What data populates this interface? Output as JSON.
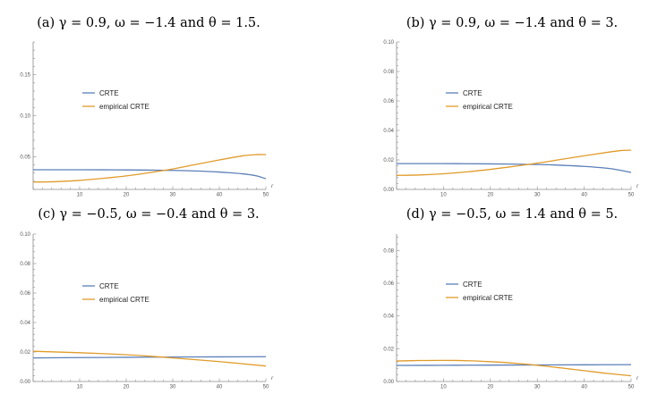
{
  "chart_data": [
    {
      "type": "line",
      "title": "(a) γ = 0.9, ω = −1.4 and θ = 1.5.",
      "xlabel": "r",
      "ylabel": "",
      "xlim": [
        0,
        50
      ],
      "ylim": [
        0.01,
        0.19
      ],
      "x_ticks": [
        10,
        20,
        30,
        40,
        50
      ],
      "y_ticks": [
        0.05,
        0.1,
        0.15
      ],
      "y_tick_labels": [
        "0.05",
        "0.10",
        "0.15"
      ],
      "series": [
        {
          "name": "CRTE",
          "color": "#5b7fb8",
          "x": [
            0,
            10,
            20,
            30,
            35,
            40,
            45,
            48,
            50
          ],
          "y": [
            0.034,
            0.034,
            0.0338,
            0.0332,
            0.0325,
            0.0312,
            0.029,
            0.0265,
            0.023
          ]
        },
        {
          "name": "empirical CRTE",
          "color": "#e09b2a",
          "x": [
            0,
            5,
            10,
            15,
            20,
            25,
            30,
            35,
            40,
            45,
            48,
            50
          ],
          "y": [
            0.019,
            0.0195,
            0.021,
            0.0235,
            0.0265,
            0.0305,
            0.035,
            0.0405,
            0.046,
            0.051,
            0.0525,
            0.0525
          ]
        }
      ],
      "legend": "left",
      "grid": false
    },
    {
      "type": "line",
      "title": "(b) γ = 0.9, ω = −1.4 and θ = 3.",
      "xlabel": "r",
      "ylabel": "",
      "xlim": [
        0,
        50
      ],
      "ylim": [
        0,
        0.1
      ],
      "x_ticks": [
        10,
        20,
        30,
        40,
        50
      ],
      "y_ticks": [
        0,
        0.02,
        0.04,
        0.06,
        0.08,
        0.1
      ],
      "y_tick_labels": [
        "0.00",
        "0.02",
        "0.04",
        "0.06",
        "0.08",
        "0.10"
      ],
      "series": [
        {
          "name": "CRTE",
          "color": "#5b7fb8",
          "x": [
            0,
            10,
            20,
            30,
            35,
            40,
            45,
            48,
            50
          ],
          "y": [
            0.0175,
            0.0175,
            0.0173,
            0.0169,
            0.0164,
            0.0156,
            0.0143,
            0.0128,
            0.0115
          ]
        },
        {
          "name": "empirical CRTE",
          "color": "#e09b2a",
          "x": [
            0,
            5,
            10,
            15,
            20,
            25,
            30,
            35,
            40,
            45,
            48,
            50
          ],
          "y": [
            0.0095,
            0.0098,
            0.0106,
            0.0119,
            0.0136,
            0.0156,
            0.0178,
            0.0203,
            0.0228,
            0.0252,
            0.0264,
            0.0266
          ]
        }
      ],
      "legend": "left",
      "grid": false
    },
    {
      "type": "line",
      "title": "(c) γ = −0.5, ω = −0.4 and θ = 3.",
      "xlabel": "r",
      "ylabel": "",
      "xlim": [
        0,
        50
      ],
      "ylim": [
        0,
        0.1
      ],
      "x_ticks": [
        10,
        20,
        30,
        40,
        50
      ],
      "y_ticks": [
        0,
        0.02,
        0.04,
        0.06,
        0.08,
        0.1
      ],
      "y_tick_labels": [
        "0.00",
        "0.02",
        "0.04",
        "0.06",
        "0.08",
        "0.10"
      ],
      "series": [
        {
          "name": "CRTE",
          "color": "#5b7fb8",
          "x": [
            0,
            10,
            20,
            30,
            40,
            50
          ],
          "y": [
            0.016,
            0.0162,
            0.0164,
            0.0166,
            0.0167,
            0.0168
          ]
        },
        {
          "name": "empirical CRTE",
          "color": "#e09b2a",
          "x": [
            0,
            10,
            20,
            25,
            30,
            40,
            50
          ],
          "y": [
            0.0205,
            0.0195,
            0.0182,
            0.0172,
            0.016,
            0.0135,
            0.0105
          ]
        }
      ],
      "legend": "left",
      "grid": false
    },
    {
      "type": "line",
      "title": "(d) γ = −0.5, ω = 1.4 and θ = 5.",
      "xlabel": "r",
      "ylabel": "",
      "xlim": [
        0,
        50
      ],
      "ylim": [
        0,
        0.09
      ],
      "x_ticks": [
        10,
        20,
        30,
        40,
        50
      ],
      "y_ticks": [
        0,
        0.02,
        0.04,
        0.06,
        0.08
      ],
      "y_tick_labels": [
        "0.00",
        "0.02",
        "0.04",
        "0.06",
        "0.08"
      ],
      "series": [
        {
          "name": "CRTE",
          "color": "#5b7fb8",
          "x": [
            0,
            10,
            20,
            30,
            40,
            50
          ],
          "y": [
            0.0098,
            0.0099,
            0.01,
            0.0101,
            0.0102,
            0.0103
          ]
        },
        {
          "name": "empirical CRTE",
          "color": "#e09b2a",
          "x": [
            0,
            5,
            10,
            15,
            20,
            25,
            30,
            35,
            40,
            45,
            50
          ],
          "y": [
            0.0125,
            0.0128,
            0.0129,
            0.0127,
            0.0121,
            0.0112,
            0.0099,
            0.0083,
            0.0066,
            0.0049,
            0.0035
          ]
        }
      ],
      "legend": "left",
      "grid": false
    }
  ]
}
